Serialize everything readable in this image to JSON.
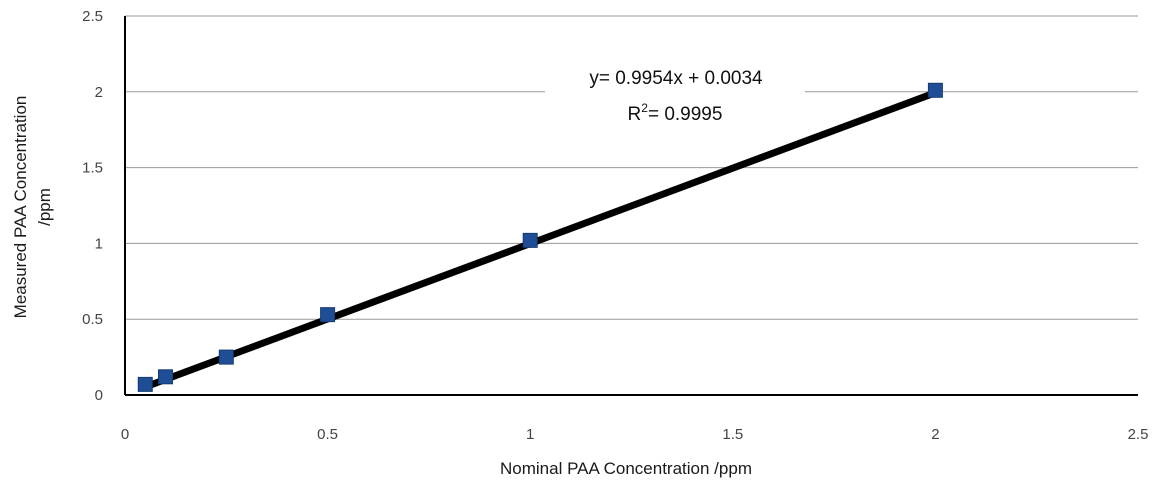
{
  "chart_data": {
    "type": "scatter",
    "title": "",
    "xlabel": "Nominal PAA Concentration /ppm",
    "ylabel_line1": "Measured PAA Concentration",
    "ylabel_line2": "/ppm",
    "xlim": [
      0,
      2.5
    ],
    "ylim": [
      0,
      2.5
    ],
    "x_ticks": [
      "0",
      "0.5",
      "1",
      "1.5",
      "2",
      "2.5"
    ],
    "y_ticks": [
      "0",
      "0.5",
      "1",
      "1.5",
      "2",
      "2.5"
    ],
    "grid": "horizontal",
    "series": [
      {
        "marker": "square",
        "color": "#1f4e96",
        "points": [
          {
            "x": 0.05,
            "y": 0.07
          },
          {
            "x": 0.1,
            "y": 0.12
          },
          {
            "x": 0.25,
            "y": 0.25
          },
          {
            "x": 0.5,
            "y": 0.53
          },
          {
            "x": 1.0,
            "y": 1.02
          },
          {
            "x": 2.0,
            "y": 2.01
          }
        ]
      }
    ],
    "trendline": {
      "slope": 0.9954,
      "intercept": 0.0034,
      "x_range": [
        0.05,
        2.0
      ],
      "color": "#000000",
      "equation_label": "y= 0.9954x + 0.0034",
      "r2_prefix": "R",
      "r2_superscript": "2",
      "r2_value": "= 0.9995"
    }
  }
}
